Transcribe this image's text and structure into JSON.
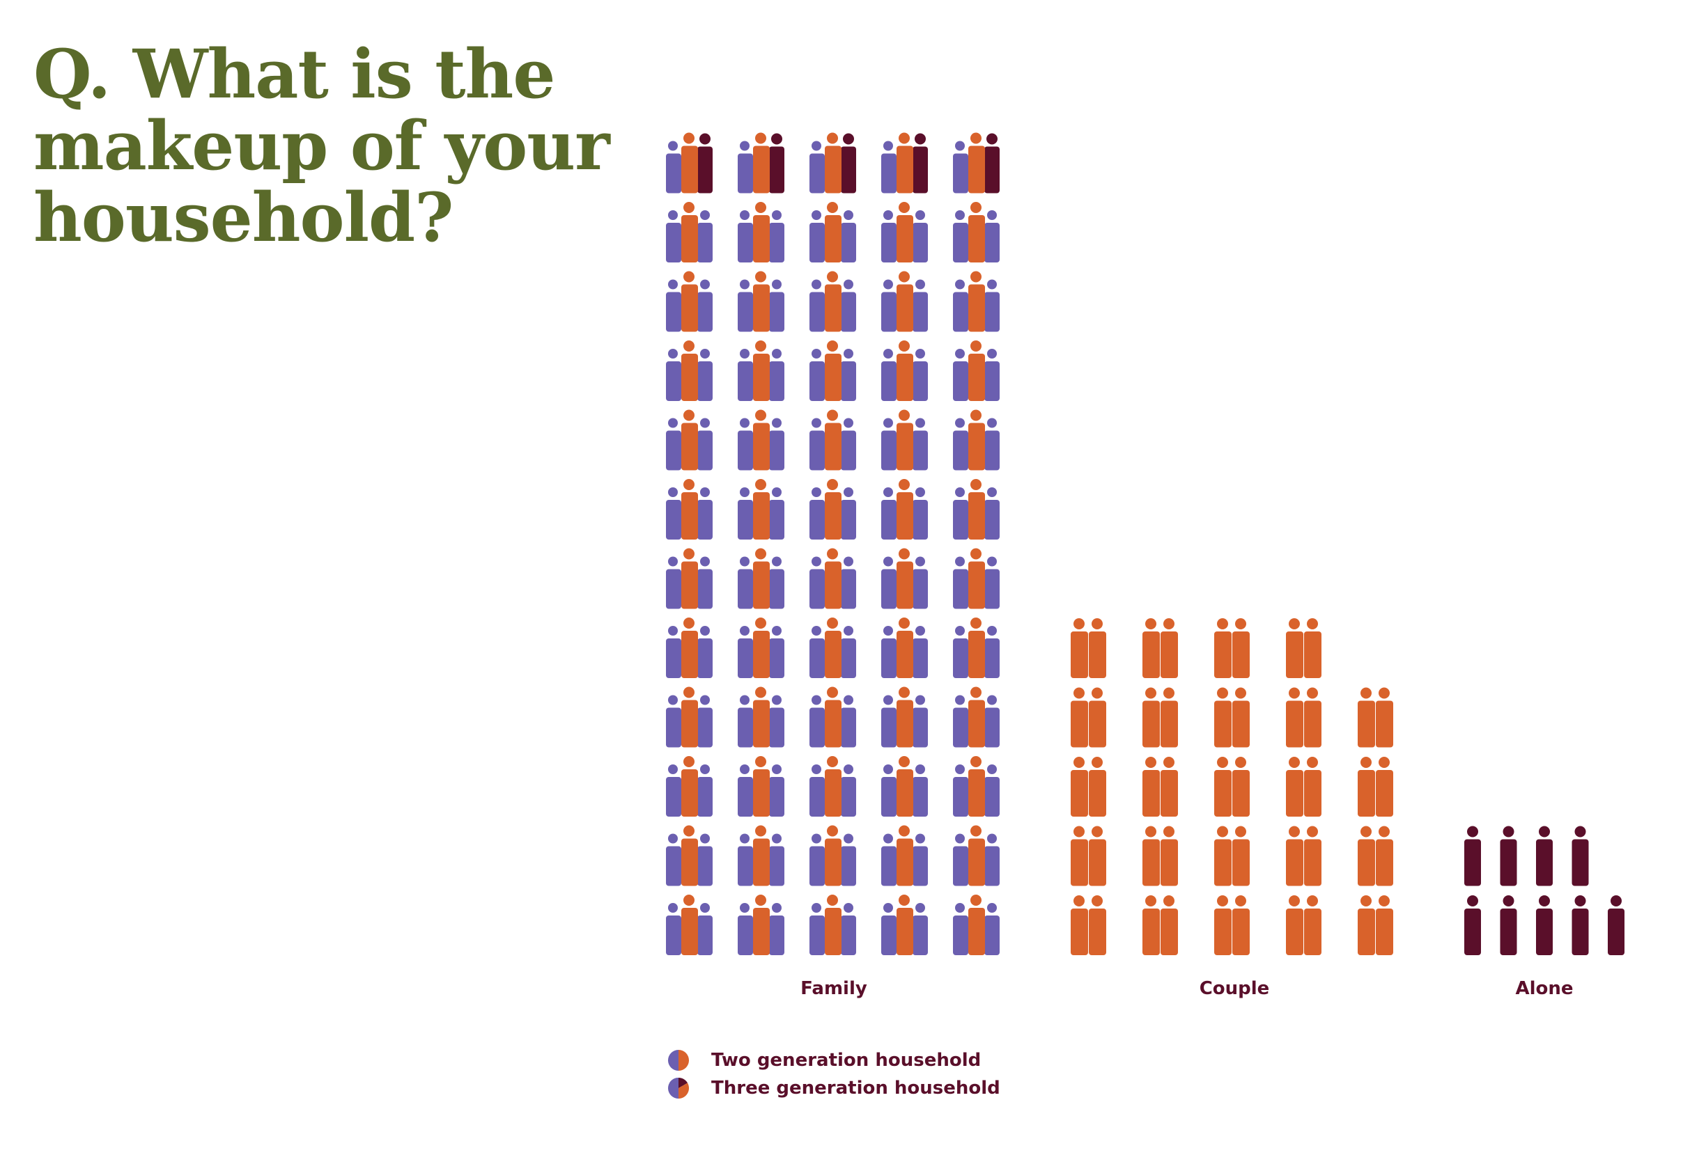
{
  "title_lines": [
    "Q. What is the",
    "makeup of your",
    "household?"
  ],
  "colors": {
    "title": "#5a6a2a",
    "purple": "#6b5fb0",
    "orange": "#d9622b",
    "maroon": "#5a0f2a",
    "label": "#5a0f2a"
  },
  "chart_data": {
    "type": "pictogram",
    "categories": [
      "Family",
      "Couple",
      "Alone"
    ],
    "series": [
      {
        "name": "Two generation household",
        "values": [
          55,
          0,
          0
        ]
      },
      {
        "name": "Three generation household",
        "values": [
          5,
          0,
          0
        ]
      }
    ],
    "totals": [
      60,
      24,
      9
    ],
    "icons": [
      "family-icon",
      "couple-icon",
      "person-icon"
    ],
    "icons_per_row": [
      5,
      5,
      5
    ]
  },
  "legend": [
    {
      "label": "Two generation household",
      "icon": "two-generation-icon"
    },
    {
      "label": "Three generation household",
      "icon": "three-generation-icon"
    }
  ]
}
